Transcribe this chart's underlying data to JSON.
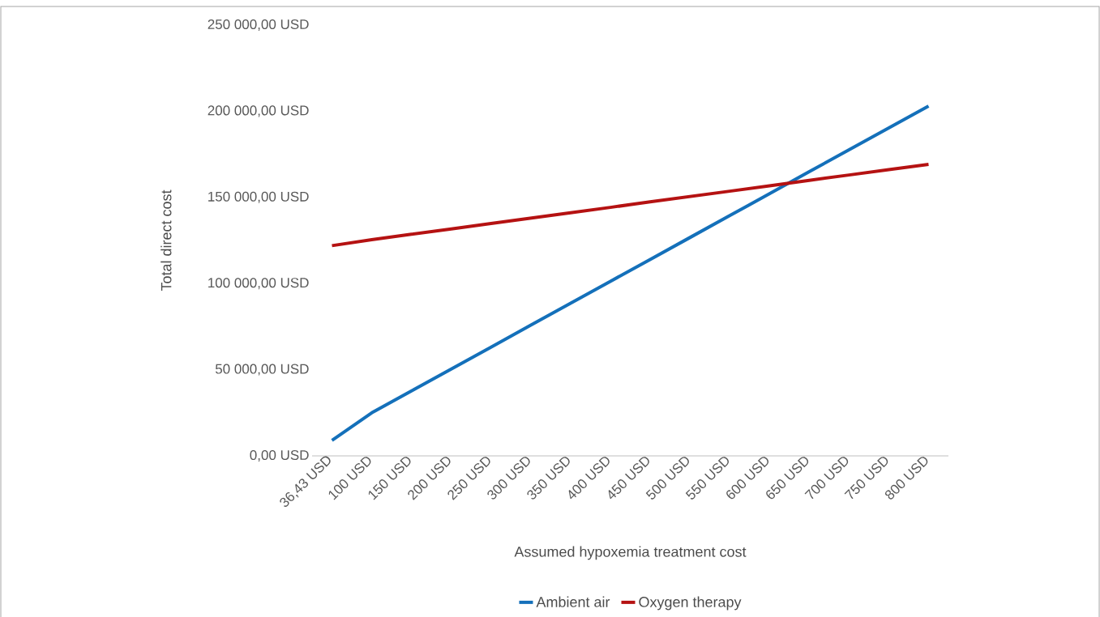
{
  "chart_data": {
    "type": "line",
    "xlabel": "Assumed hypoxemia treatment cost",
    "ylabel": "Total direct cost",
    "categories": [
      "36,43 USD",
      "100 USD",
      "150 USD",
      "200 USD",
      "250 USD",
      "300 USD",
      "350 USD",
      "400 USD",
      "450 USD",
      "500 USD",
      "550 USD",
      "600 USD",
      "650 USD",
      "700 USD",
      "750 USD",
      "800 USD"
    ],
    "series": [
      {
        "name": "Ambient air",
        "color": "#1470ba",
        "values": [
          9000,
          25000,
          37700,
          50400,
          63100,
          75900,
          88600,
          101300,
          114000,
          126700,
          139400,
          152100,
          164900,
          177600,
          190300,
          203000
        ]
      },
      {
        "name": "Oxygen therapy",
        "color": "#b51212",
        "values": [
          122000,
          125500,
          128600,
          131700,
          134900,
          138000,
          141100,
          144200,
          147400,
          150500,
          153600,
          156700,
          159900,
          163000,
          166100,
          169200
        ]
      }
    ],
    "ylim": [
      0,
      250000
    ],
    "yticks": [
      {
        "value": 0,
        "label": "0,00 USD"
      },
      {
        "value": 50000,
        "label": "50 000,00 USD"
      },
      {
        "value": 100000,
        "label": "100 000,00 USD"
      },
      {
        "value": 150000,
        "label": "150 000,00 USD"
      },
      {
        "value": 200000,
        "label": "200 000,00 USD"
      },
      {
        "value": 250000,
        "label": "250 000,00 USD"
      }
    ],
    "grid": false,
    "legend": "bottom",
    "marker": "none",
    "line_style": "solid"
  }
}
